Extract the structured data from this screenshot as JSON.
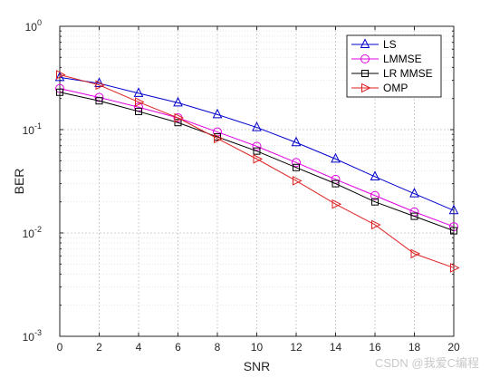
{
  "chart_data": {
    "type": "line",
    "xlabel": "SNR",
    "ylabel": "BER",
    "xlim": [
      0,
      20
    ],
    "ylim": [
      0.001,
      1
    ],
    "yscale": "log",
    "grid": true,
    "legend_position": "top-right",
    "x": [
      0,
      2,
      4,
      6,
      8,
      10,
      12,
      14,
      16,
      18,
      20
    ],
    "x_ticks": [
      "0",
      "2",
      "4",
      "6",
      "8",
      "10",
      "12",
      "14",
      "16",
      "18",
      "20"
    ],
    "y_ticks": [
      {
        "value": 0.001,
        "base": "10",
        "exp": "-3"
      },
      {
        "value": 0.01,
        "base": "10",
        "exp": "-2"
      },
      {
        "value": 0.1,
        "base": "10",
        "exp": "-1"
      },
      {
        "value": 1,
        "base": "10",
        "exp": "0"
      }
    ],
    "series": [
      {
        "name": "LS",
        "color": "#0000cc",
        "marker": "triangle-up",
        "values": [
          0.32,
          0.28,
          0.225,
          0.182,
          0.14,
          0.105,
          0.075,
          0.052,
          0.035,
          0.024,
          0.0165
        ]
      },
      {
        "name": "LMMSE",
        "color": "#e000e0",
        "marker": "circle",
        "values": [
          0.25,
          0.205,
          0.165,
          0.13,
          0.095,
          0.069,
          0.048,
          0.033,
          0.023,
          0.016,
          0.0115
        ]
      },
      {
        "name": "LR MMSE",
        "color": "#000000",
        "marker": "square",
        "values": [
          0.23,
          0.19,
          0.15,
          0.117,
          0.085,
          0.062,
          0.043,
          0.03,
          0.02,
          0.0145,
          0.0105
        ]
      },
      {
        "name": "OMP",
        "color": "#dd2222",
        "marker": "triangle-right",
        "values": [
          0.34,
          0.27,
          0.185,
          0.13,
          0.082,
          0.052,
          0.032,
          0.019,
          0.012,
          0.0063,
          0.0046
        ]
      }
    ]
  },
  "watermark": "CSDN @我爱C编程"
}
